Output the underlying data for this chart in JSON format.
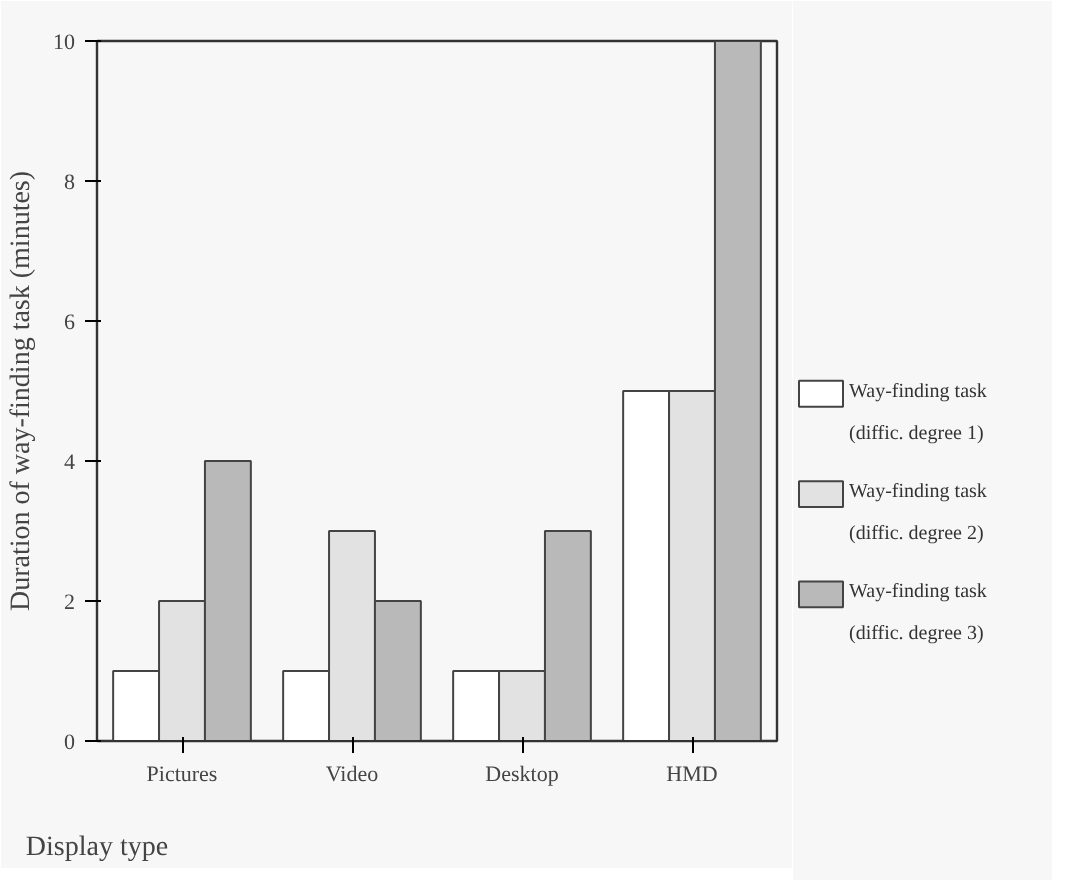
{
  "chart_data": {
    "type": "bar",
    "xlabel": "Display type",
    "ylabel": "Duration of way-finding task (minutes)",
    "categories": [
      "Pictures",
      "Video",
      "Desktop",
      "HMD"
    ],
    "series": [
      {
        "name": "Way-finding task (diffic. degree 1)",
        "color": "#ffffff",
        "values": [
          1,
          1,
          1,
          5
        ]
      },
      {
        "name": "Way-finding task (diffic. degree 2)",
        "color": "#e2e2e2",
        "values": [
          2,
          3,
          1,
          5
        ]
      },
      {
        "name": "Way-finding task (diffic. degree 3)",
        "color": "#b9b9b9",
        "values": [
          4,
          2,
          3,
          10
        ]
      }
    ],
    "ylim": [
      0,
      10
    ],
    "yticks": [
      0,
      2,
      4,
      6,
      8,
      10
    ],
    "grid": false,
    "legend": "right"
  }
}
